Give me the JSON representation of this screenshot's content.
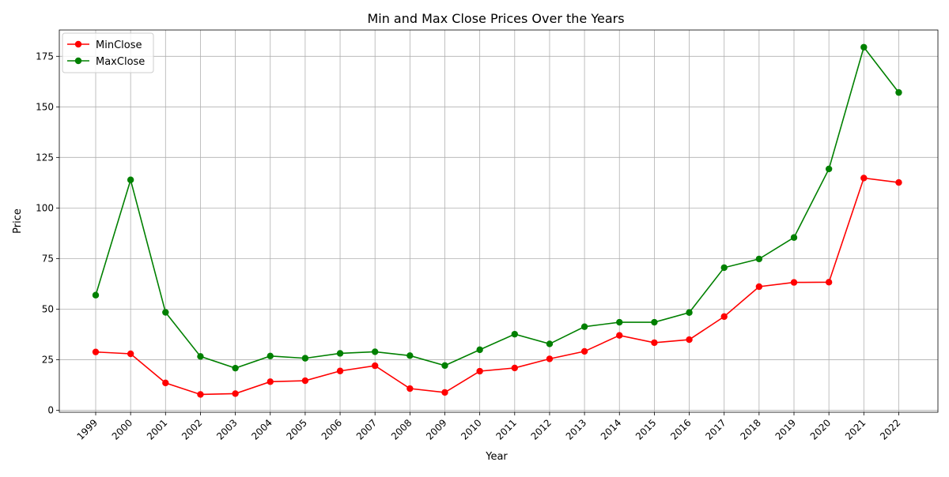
{
  "chart_data": {
    "type": "line",
    "title": "Min and Max Close Prices Over the Years",
    "xlabel": "Year",
    "ylabel": "Price",
    "categories": [
      "1999",
      "2000",
      "2001",
      "2002",
      "2003",
      "2004",
      "2005",
      "2006",
      "2007",
      "2008",
      "2009",
      "2010",
      "2011",
      "2012",
      "2013",
      "2014",
      "2015",
      "2016",
      "2017",
      "2018",
      "2019",
      "2020",
      "2021",
      "2022"
    ],
    "ylim": [
      -1,
      188
    ],
    "yticks": [
      0,
      25,
      50,
      75,
      100,
      125,
      150,
      175
    ],
    "grid": true,
    "legend_position": "top-left",
    "series": [
      {
        "name": "MinClose",
        "color": "#ff0000",
        "marker": "circle",
        "values": [
          28.8,
          27.9,
          13.5,
          7.8,
          8.2,
          14.1,
          14.6,
          19.4,
          22.0,
          10.7,
          8.8,
          19.3,
          20.9,
          25.4,
          29.1,
          37.0,
          33.4,
          34.9,
          46.3,
          61.1,
          63.2,
          63.3,
          114.8,
          112.6
        ]
      },
      {
        "name": "MaxClose",
        "color": "#008000",
        "marker": "circle",
        "values": [
          56.9,
          113.9,
          48.4,
          26.6,
          20.8,
          26.8,
          25.7,
          28.1,
          28.9,
          27.0,
          22.1,
          29.9,
          37.6,
          32.8,
          41.3,
          43.5,
          43.5,
          48.3,
          70.5,
          74.8,
          85.4,
          119.3,
          179.5,
          157.1
        ]
      }
    ]
  }
}
